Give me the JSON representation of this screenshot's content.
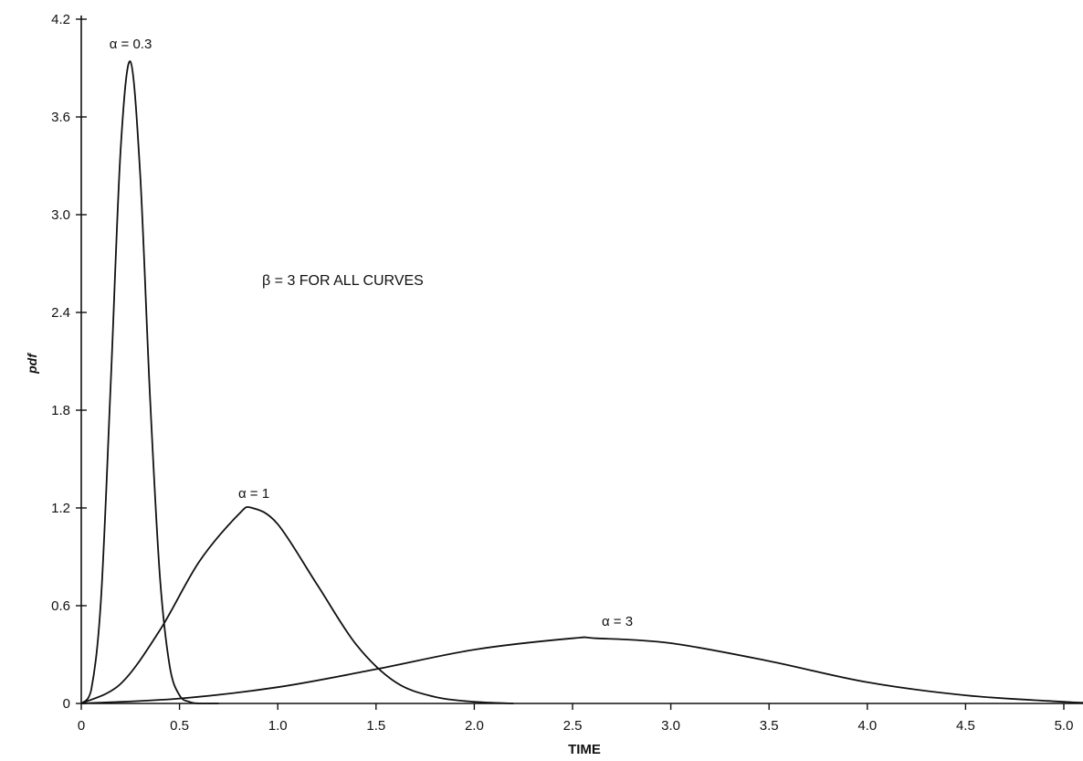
{
  "chart_data": {
    "type": "line",
    "title": "",
    "xlabel": "TIME",
    "ylabel": "pdf",
    "xlim": [
      0,
      5.1
    ],
    "ylim": [
      0,
      4.2
    ],
    "x_ticks": [
      "0",
      "0.5",
      "1.0",
      "1.5",
      "2.0",
      "2.5",
      "3.0",
      "3.5",
      "4.0",
      "4.5",
      "5.0"
    ],
    "y_ticks": [
      "0",
      "0.6",
      "1.2",
      "1.8",
      "2.4",
      "3.0",
      "3.6",
      "4.2"
    ],
    "grid": false,
    "annotation": "β = 3 FOR ALL CURVES",
    "series": [
      {
        "name": "α = 0.3",
        "label": "α = 0.3",
        "x": [
          0,
          0.05,
          0.1,
          0.15,
          0.2,
          0.25,
          0.3,
          0.35,
          0.4,
          0.45,
          0.5,
          0.55,
          0.6,
          0.7
        ],
        "y": [
          0,
          0.08,
          0.63,
          1.97,
          3.39,
          3.94,
          3.24,
          1.88,
          0.78,
          0.23,
          0.05,
          0.01,
          0.0,
          0.0
        ]
      },
      {
        "name": "α = 1",
        "label": "α = 1",
        "x": [
          0,
          0.2,
          0.4,
          0.6,
          0.8,
          0.87,
          1.0,
          1.2,
          1.4,
          1.6,
          1.8,
          2.0,
          2.2
        ],
        "y": [
          0,
          0.12,
          0.45,
          0.87,
          1.16,
          1.2,
          1.1,
          0.73,
          0.36,
          0.13,
          0.04,
          0.01,
          0.0
        ]
      },
      {
        "name": "α = 3",
        "label": "α = 3",
        "x": [
          0,
          0.5,
          1.0,
          1.5,
          2.0,
          2.5,
          2.62,
          3.0,
          3.5,
          4.0,
          4.5,
          5.0,
          5.1
        ],
        "y": [
          0,
          0.03,
          0.1,
          0.21,
          0.33,
          0.4,
          0.4,
          0.37,
          0.26,
          0.13,
          0.05,
          0.01,
          0.005
        ]
      }
    ]
  }
}
